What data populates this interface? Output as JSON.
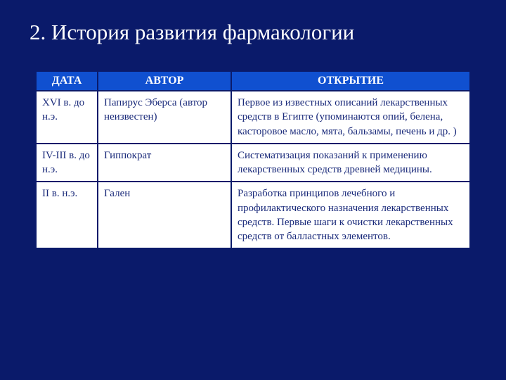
{
  "slide": {
    "title": "2. История развития фармакологии",
    "background_color": "#0a1a6a",
    "title_color": "#ffffff",
    "title_fontsize": 31
  },
  "table": {
    "header_bg": "#1050d0",
    "header_text_color": "#ffffff",
    "cell_text_color": "#1a2a7a",
    "border_color": "#0a1a6a",
    "columns": [
      {
        "label": "ДАТА",
        "width": 88
      },
      {
        "label": "АВТОР",
        "width": 190
      },
      {
        "label": "ОТКРЫТИЕ",
        "width": "auto"
      }
    ],
    "rows": [
      {
        "date": "XVI в. до н.э.",
        "author": "Папирус Эберса (автор неизвестен)",
        "discovery": "Первое из известных описаний лекарственных средств в Египте (упоминаются опий, белена, касторовое масло, мята, бальзамы, печень и др. )"
      },
      {
        "date": "IV-III в. до н.э.",
        "author": "Гиппократ",
        "discovery": "Систематизация показаний к применению лекарственных средств древней медицины."
      },
      {
        "date": "II в. н.э.",
        "author": "Гален",
        "discovery": "Разработка принципов лечебного и профилактического назначения лекарственных средств. Первые шаги к очистки лекарственных средств от балластных элементов."
      }
    ]
  }
}
